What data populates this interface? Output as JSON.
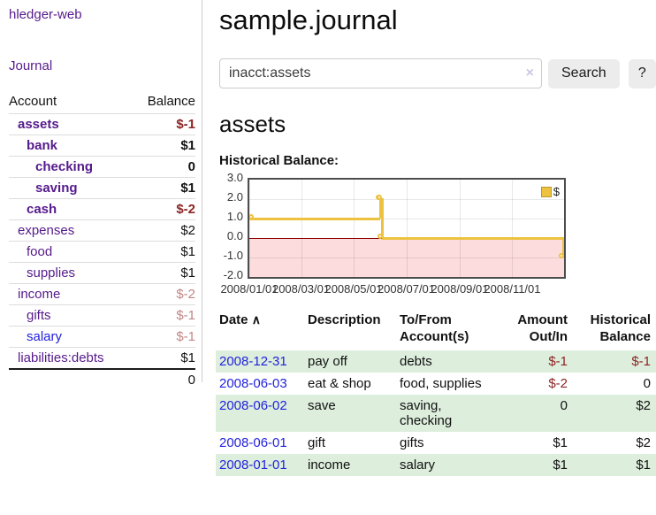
{
  "colors": {
    "purple": "#551a8b",
    "blue": "#2222dd",
    "neg": "#8d2323",
    "negsoft": "#c28585",
    "shade": "#ddeedd",
    "chartline": "#edc240",
    "chartneg": "#fcdcdc",
    "zeroline": "#8b0000"
  },
  "sidebar": {
    "brand": "hledger-web",
    "nav": {
      "journal": "Journal"
    },
    "table_headers": {
      "account": "Account",
      "balance": "Balance"
    },
    "accounts": [
      {
        "name": "assets",
        "depth": 1,
        "strong": true,
        "link": "purple",
        "balance": "$-1",
        "bal_class": "neg-strong"
      },
      {
        "name": "bank",
        "depth": 2,
        "strong": true,
        "link": "purple",
        "balance": "$1",
        "bal_class": "pos-strong"
      },
      {
        "name": "checking",
        "depth": 3,
        "strong": true,
        "link": "purple",
        "balance": "0",
        "bal_class": "pos-strong"
      },
      {
        "name": "saving",
        "depth": 3,
        "strong": true,
        "link": "purple",
        "balance": "$1",
        "bal_class": "pos-strong"
      },
      {
        "name": "cash",
        "depth": 2,
        "strong": true,
        "link": "purple",
        "balance": "$-2",
        "bal_class": "neg-strong"
      },
      {
        "name": "expenses",
        "depth": 1,
        "strong": false,
        "link": "purple",
        "balance": "$2",
        "bal_class": "pos"
      },
      {
        "name": "food",
        "depth": 2,
        "strong": false,
        "link": "purple",
        "balance": "$1",
        "bal_class": "pos"
      },
      {
        "name": "supplies",
        "depth": 2,
        "strong": false,
        "link": "purple",
        "balance": "$1",
        "bal_class": "pos"
      },
      {
        "name": "income",
        "depth": 1,
        "strong": false,
        "link": "purple",
        "balance": "$-2",
        "bal_class": "neg-soft"
      },
      {
        "name": "gifts",
        "depth": 2,
        "strong": false,
        "link": "purple",
        "balance": "$-1",
        "bal_class": "neg-soft"
      },
      {
        "name": "salary",
        "depth": 2,
        "strong": false,
        "link": "blue",
        "balance": "$-1",
        "bal_class": "neg-soft"
      },
      {
        "name": "liabilities:debts",
        "depth": 1,
        "strong": false,
        "link": "purple",
        "balance": "$1",
        "bal_class": "pos"
      }
    ],
    "total": "0"
  },
  "main": {
    "title": "sample.journal",
    "search": {
      "value": "inacct:assets",
      "clear_icon": "×",
      "button_label": "Search",
      "help_label": "?"
    },
    "account_heading": "assets",
    "chart_heading": "Historical Balance:"
  },
  "chart_data": {
    "type": "line",
    "title": "Historical Balance:",
    "step": true,
    "series": [
      {
        "name": "$",
        "points": [
          [
            "2008-01-01",
            1
          ],
          [
            "2008-06-01",
            2
          ],
          [
            "2008-06-02",
            2
          ],
          [
            "2008-06-03",
            0
          ],
          [
            "2008-12-31",
            -1
          ]
        ]
      }
    ],
    "ylim": [
      -2,
      3
    ],
    "yticks": [
      3.0,
      2.0,
      1.0,
      0.0,
      -1.0,
      -2.0
    ],
    "xticks": [
      {
        "date": "2008-01-01",
        "label": "2008/01/01"
      },
      {
        "date": "2008-03-01",
        "label": "2008/03/01"
      },
      {
        "date": "2008-05-01",
        "label": "2008/05/01"
      },
      {
        "date": "2008-07-01",
        "label": "2008/07/01"
      },
      {
        "date": "2008-09-01",
        "label": "2008/09/01"
      },
      {
        "date": "2008-11-01",
        "label": "2008/11/01"
      }
    ],
    "x_range": [
      "2008-01-01",
      "2008-12-31"
    ],
    "grid": true,
    "negative_region_shaded": true,
    "legend_position": "top-right",
    "legend": [
      "$"
    ]
  },
  "register": {
    "headers": {
      "date": "Date",
      "sort_icon": "∧",
      "description": "Description",
      "accounts": "To/From Account(s)",
      "amount": "Amount Out/In",
      "balance": "Historical Balance"
    },
    "rows": [
      {
        "date": "2008-12-31",
        "description": "pay off",
        "accounts": "debts",
        "amount": "$-1",
        "amount_neg": true,
        "balance": "$-1",
        "balance_neg": true,
        "shade": true
      },
      {
        "date": "2008-06-03",
        "description": "eat & shop",
        "accounts": "food, supplies",
        "amount": "$-2",
        "amount_neg": true,
        "balance": "0",
        "balance_neg": false,
        "shade": false
      },
      {
        "date": "2008-06-02",
        "description": "save",
        "accounts": "saving, checking",
        "amount": "0",
        "amount_neg": false,
        "balance": "$2",
        "balance_neg": false,
        "shade": true
      },
      {
        "date": "2008-06-01",
        "description": "gift",
        "accounts": "gifts",
        "amount": "$1",
        "amount_neg": false,
        "balance": "$2",
        "balance_neg": false,
        "shade": false
      },
      {
        "date": "2008-01-01",
        "description": "income",
        "accounts": "salary",
        "amount": "$1",
        "amount_neg": false,
        "balance": "$1",
        "balance_neg": false,
        "shade": true
      }
    ]
  }
}
